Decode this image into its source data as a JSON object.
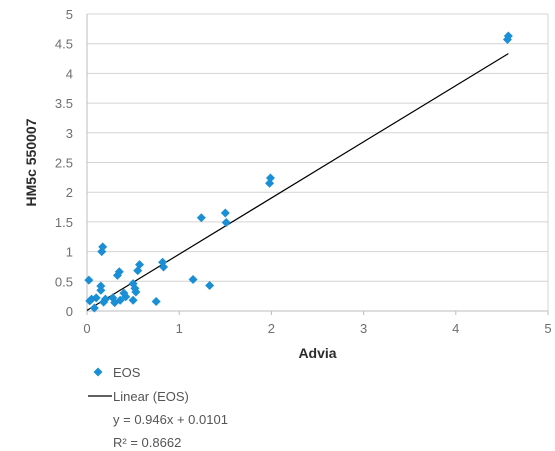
{
  "chart_data": {
    "type": "scatter",
    "title": "",
    "xlabel": "Advia",
    "ylabel": "HM5c 550007",
    "xlim": [
      0,
      5
    ],
    "ylim": [
      0,
      5
    ],
    "x_ticks": [
      "0",
      "1",
      "2",
      "3",
      "4",
      "5"
    ],
    "y_ticks": [
      "0",
      "0.5",
      "1",
      "1.5",
      "2",
      "2.5",
      "3",
      "3.5",
      "4",
      "4.5",
      "5"
    ],
    "grid": "horizontal",
    "legend_position": "bottom-left",
    "series": [
      {
        "name": "EOS",
        "marker": "diamond",
        "color": "#1a8fd6",
        "points": [
          {
            "x": 0.02,
            "y": 0.52
          },
          {
            "x": 0.03,
            "y": 0.17
          },
          {
            "x": 0.05,
            "y": 0.2
          },
          {
            "x": 0.08,
            "y": 0.05
          },
          {
            "x": 0.1,
            "y": 0.22
          },
          {
            "x": 0.15,
            "y": 0.42
          },
          {
            "x": 0.15,
            "y": 0.35
          },
          {
            "x": 0.16,
            "y": 1.0
          },
          {
            "x": 0.17,
            "y": 1.08
          },
          {
            "x": 0.18,
            "y": 0.15
          },
          {
            "x": 0.2,
            "y": 0.2
          },
          {
            "x": 0.28,
            "y": 0.22
          },
          {
            "x": 0.3,
            "y": 0.14
          },
          {
            "x": 0.33,
            "y": 0.6
          },
          {
            "x": 0.35,
            "y": 0.66
          },
          {
            "x": 0.36,
            "y": 0.18
          },
          {
            "x": 0.4,
            "y": 0.3
          },
          {
            "x": 0.42,
            "y": 0.24
          },
          {
            "x": 0.5,
            "y": 0.46
          },
          {
            "x": 0.5,
            "y": 0.18
          },
          {
            "x": 0.52,
            "y": 0.38
          },
          {
            "x": 0.53,
            "y": 0.32
          },
          {
            "x": 0.55,
            "y": 0.68
          },
          {
            "x": 0.57,
            "y": 0.78
          },
          {
            "x": 0.75,
            "y": 0.16
          },
          {
            "x": 0.82,
            "y": 0.82
          },
          {
            "x": 0.83,
            "y": 0.74
          },
          {
            "x": 1.15,
            "y": 0.53
          },
          {
            "x": 1.24,
            "y": 1.57
          },
          {
            "x": 1.33,
            "y": 0.43
          },
          {
            "x": 1.5,
            "y": 1.65
          },
          {
            "x": 1.51,
            "y": 1.49
          },
          {
            "x": 1.98,
            "y": 2.15
          },
          {
            "x": 1.99,
            "y": 2.24
          },
          {
            "x": 4.56,
            "y": 4.57
          },
          {
            "x": 4.57,
            "y": 4.63
          }
        ]
      }
    ],
    "trendline": {
      "name": "Linear (EOS)",
      "slope": 0.946,
      "intercept": 0.0101,
      "x_range": [
        0,
        4.57
      ],
      "color": "#000000",
      "equation": "y = 0.946x + 0.0101",
      "r_squared": "R² = 0.8662"
    }
  }
}
